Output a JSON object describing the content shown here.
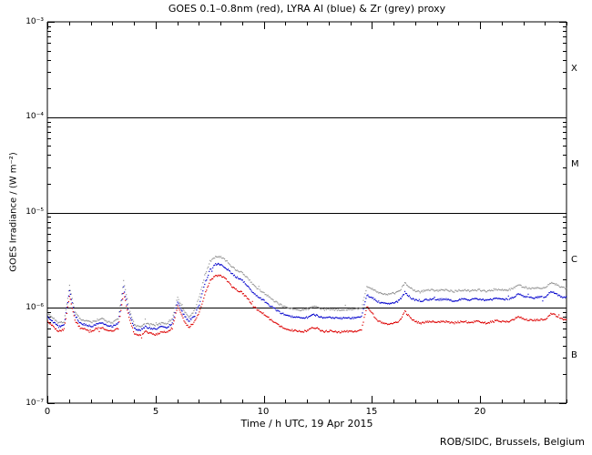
{
  "footer": {
    "credit": "ROB/SIDC, Brussels, Belgium"
  },
  "chart_data": {
    "type": "line",
    "title": "GOES 0.1–0.8nm (red), LYRA Al (blue) & Zr (grey) proxy",
    "xlabel": "Time / h UTC, 19 Apr 2015",
    "ylabel": "GOES Irradiance / (W m⁻²)",
    "x_range": [
      0,
      24
    ],
    "x_major_ticks": [
      0,
      5,
      10,
      15,
      20
    ],
    "x_tick_labels": [
      "0",
      "5",
      "10",
      "15",
      "20"
    ],
    "x_minor_tick_step_h": 1,
    "y_scale": "log",
    "y_range": [
      1e-07,
      0.001
    ],
    "y_decade_exponents": [
      -3,
      -4,
      -5,
      -6,
      -7
    ],
    "y_tick_labels": [
      "10⁻³",
      "10⁻⁴",
      "10⁻⁵",
      "10⁻⁶",
      "10⁻⁷"
    ],
    "hline_values": [
      0.0001,
      1e-05,
      1e-06
    ],
    "flare_class_labels": [
      "X",
      "M",
      "C",
      "B"
    ],
    "grid": false,
    "legend_position": "colors named in title",
    "sample_step_h": 0.25,
    "value_unit": "1e-7 W m^-2",
    "series": [
      {
        "name": "LYRA Zr proxy",
        "color": "#969696",
        "values": [
          8.8,
          7.9,
          7.0,
          7.3,
          17.3,
          9.2,
          7.7,
          7.4,
          7.1,
          7.5,
          7.8,
          7.2,
          7.1,
          7.7,
          19.5,
          10.0,
          6.7,
          6.4,
          7.0,
          6.8,
          6.6,
          7.0,
          6.9,
          7.7,
          13.0,
          9.7,
          8.0,
          9.3,
          13.0,
          22.0,
          31.0,
          35.0,
          34.5,
          31.5,
          27.5,
          25.0,
          23.5,
          20.5,
          17.5,
          15.8,
          14.5,
          13.0,
          11.8,
          10.9,
          10.2,
          9.9,
          9.7,
          9.6,
          9.8,
          10.6,
          10.1,
          9.7,
          9.8,
          9.7,
          9.6,
          9.8,
          9.7,
          9.8,
          10.2,
          17.0,
          16.0,
          14.8,
          14.3,
          14.0,
          14.4,
          15.0,
          18.5,
          16.3,
          15.3,
          15.0,
          15.4,
          15.6,
          15.2,
          15.6,
          15.4,
          15.0,
          15.4,
          15.6,
          15.2,
          15.6,
          15.5,
          15.1,
          15.5,
          15.9,
          15.6,
          15.5,
          16.2,
          17.5,
          16.8,
          16.1,
          16.1,
          16.4,
          16.5,
          18.5,
          17.8,
          16.5,
          16.2
        ]
      },
      {
        "name": "LYRA Al proxy",
        "color": "#0000cc",
        "values": [
          8.1,
          7.2,
          6.4,
          6.7,
          15.2,
          8.4,
          7.0,
          6.7,
          6.5,
          6.8,
          7.1,
          6.6,
          6.5,
          7.0,
          16.5,
          9.0,
          6.1,
          5.9,
          6.4,
          6.2,
          6.0,
          6.4,
          6.3,
          7.0,
          11.8,
          8.8,
          7.3,
          8.3,
          11.0,
          18.0,
          25.5,
          29.0,
          29.0,
          26.5,
          23.0,
          21.0,
          19.5,
          17.0,
          14.5,
          13.0,
          12.0,
          10.8,
          9.8,
          9.0,
          8.5,
          8.2,
          8.0,
          7.9,
          8.0,
          8.7,
          8.3,
          7.9,
          8.0,
          7.9,
          7.8,
          8.0,
          7.9,
          8.0,
          8.3,
          13.8,
          12.9,
          11.8,
          11.4,
          11.2,
          11.5,
          12.0,
          14.8,
          13.0,
          12.2,
          12.0,
          12.3,
          12.5,
          12.2,
          12.5,
          12.3,
          12.0,
          12.3,
          12.5,
          12.2,
          12.5,
          12.4,
          12.1,
          12.4,
          12.7,
          12.5,
          12.4,
          13.0,
          14.0,
          13.4,
          12.9,
          12.9,
          13.1,
          13.2,
          14.8,
          14.2,
          13.2,
          13.0
        ]
      },
      {
        "name": "GOES 0.1-0.8nm",
        "color": "#dd0000",
        "values": [
          7.2,
          6.4,
          5.7,
          6.0,
          13.5,
          7.5,
          6.2,
          6.0,
          5.8,
          6.1,
          6.3,
          5.9,
          5.8,
          6.2,
          14.5,
          8.0,
          5.4,
          5.2,
          5.7,
          5.5,
          5.3,
          5.7,
          5.6,
          6.2,
          10.5,
          7.8,
          6.3,
          7.0,
          9.0,
          14.0,
          19.5,
          22.0,
          22.0,
          20.0,
          17.0,
          15.5,
          14.5,
          12.5,
          10.5,
          9.5,
          8.7,
          7.8,
          7.0,
          6.5,
          6.1,
          5.9,
          5.8,
          5.7,
          5.8,
          6.3,
          6.0,
          5.7,
          5.8,
          5.7,
          5.6,
          5.8,
          5.7,
          5.8,
          6.0,
          10.5,
          8.8,
          7.4,
          7.0,
          6.8,
          7.0,
          7.3,
          9.3,
          8.0,
          7.2,
          7.0,
          7.2,
          7.3,
          7.1,
          7.3,
          7.2,
          7.0,
          7.2,
          7.3,
          7.1,
          7.3,
          7.2,
          7.0,
          7.2,
          7.4,
          7.3,
          7.2,
          7.6,
          8.2,
          7.8,
          7.5,
          7.5,
          7.6,
          7.7,
          8.8,
          8.4,
          7.7,
          7.5
        ]
      }
    ]
  }
}
